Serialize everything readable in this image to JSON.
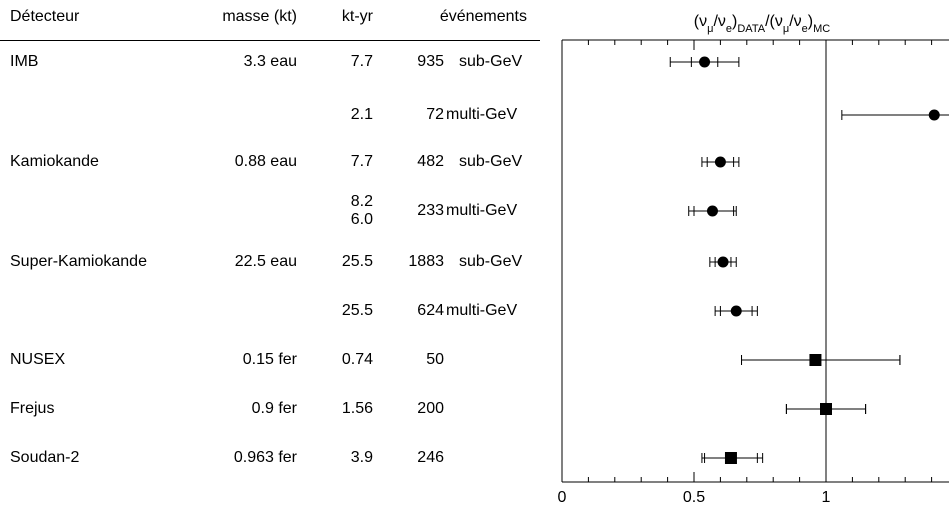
{
  "table": {
    "headers": {
      "detector": "Détecteur",
      "mass": "masse (kt)",
      "ktyr": "kt-yr",
      "events": "événements"
    },
    "rows": [
      {
        "detector": "IMB",
        "mass": "3.3 eau",
        "ktyr": "7.7",
        "events": "935",
        "type": "sub-GeV"
      },
      {
        "detector": "",
        "mass": "",
        "ktyr": "2.1",
        "events": "72",
        "type": "multi-GeV"
      },
      {
        "detector": "Kamiokande",
        "mass": "0.88 eau",
        "ktyr": "7.7",
        "events": "482",
        "type": "sub-GeV"
      },
      {
        "detector": "",
        "mass": "",
        "ktyr": "8.2",
        "ktyr2": "6.0",
        "events": "233",
        "type": "multi-GeV"
      },
      {
        "detector": "Super-Kamiokande",
        "mass": "22.5 eau",
        "ktyr": "25.5",
        "events": "1883",
        "type": "sub-GeV"
      },
      {
        "detector": "",
        "mass": "",
        "ktyr": "25.5",
        "events": "624",
        "type": "multi-GeV"
      },
      {
        "detector": "NUSEX",
        "mass": "0.15 fer",
        "ktyr": "0.74",
        "events": "50",
        "type": ""
      },
      {
        "detector": "Frejus",
        "mass": "0.9 fer",
        "ktyr": "1.56",
        "events": "200",
        "type": ""
      },
      {
        "detector": "Soudan-2",
        "mass": "0.963 fer",
        "ktyr": "3.9",
        "events": "246",
        "type": ""
      }
    ]
  },
  "chart_data": {
    "type": "scatter",
    "title_parts": [
      "(ν",
      "μ",
      "/ν",
      "e",
      ")",
      "DATA",
      "/(ν",
      "μ",
      "/ν",
      "e",
      ")",
      "MC"
    ],
    "xlim": [
      0,
      1.5
    ],
    "xticks": [
      "0",
      "0.5",
      "1"
    ],
    "xtick_values": [
      0,
      0.5,
      1
    ],
    "reference_line": 1,
    "points": [
      {
        "value": 0.54,
        "stat_low": 0.49,
        "stat_high": 0.59,
        "tot_low": 0.41,
        "tot_high": 0.67,
        "marker": "circle"
      },
      {
        "value": 1.41,
        "stat_low": 1.41,
        "stat_high": 1.41,
        "tot_low": 1.06,
        "tot_high": 1.76,
        "marker": "circle"
      },
      {
        "value": 0.6,
        "stat_low": 0.55,
        "stat_high": 0.65,
        "tot_low": 0.53,
        "tot_high": 0.67,
        "marker": "circle"
      },
      {
        "value": 0.57,
        "stat_low": 0.5,
        "stat_high": 0.65,
        "tot_low": 0.48,
        "tot_high": 0.66,
        "marker": "circle"
      },
      {
        "value": 0.61,
        "stat_low": 0.58,
        "stat_high": 0.64,
        "tot_low": 0.56,
        "tot_high": 0.66,
        "marker": "circle"
      },
      {
        "value": 0.66,
        "stat_low": 0.6,
        "stat_high": 0.72,
        "tot_low": 0.58,
        "tot_high": 0.74,
        "marker": "circle"
      },
      {
        "value": 0.96,
        "stat_low": 0.68,
        "stat_high": 1.28,
        "tot_low": 0.68,
        "tot_high": 1.28,
        "marker": "square"
      },
      {
        "value": 1.0,
        "stat_low": 0.85,
        "stat_high": 1.15,
        "tot_low": 0.85,
        "tot_high": 1.15,
        "marker": "square"
      },
      {
        "value": 0.64,
        "stat_low": 0.54,
        "stat_high": 0.74,
        "tot_low": 0.53,
        "tot_high": 0.76,
        "marker": "square"
      }
    ]
  }
}
